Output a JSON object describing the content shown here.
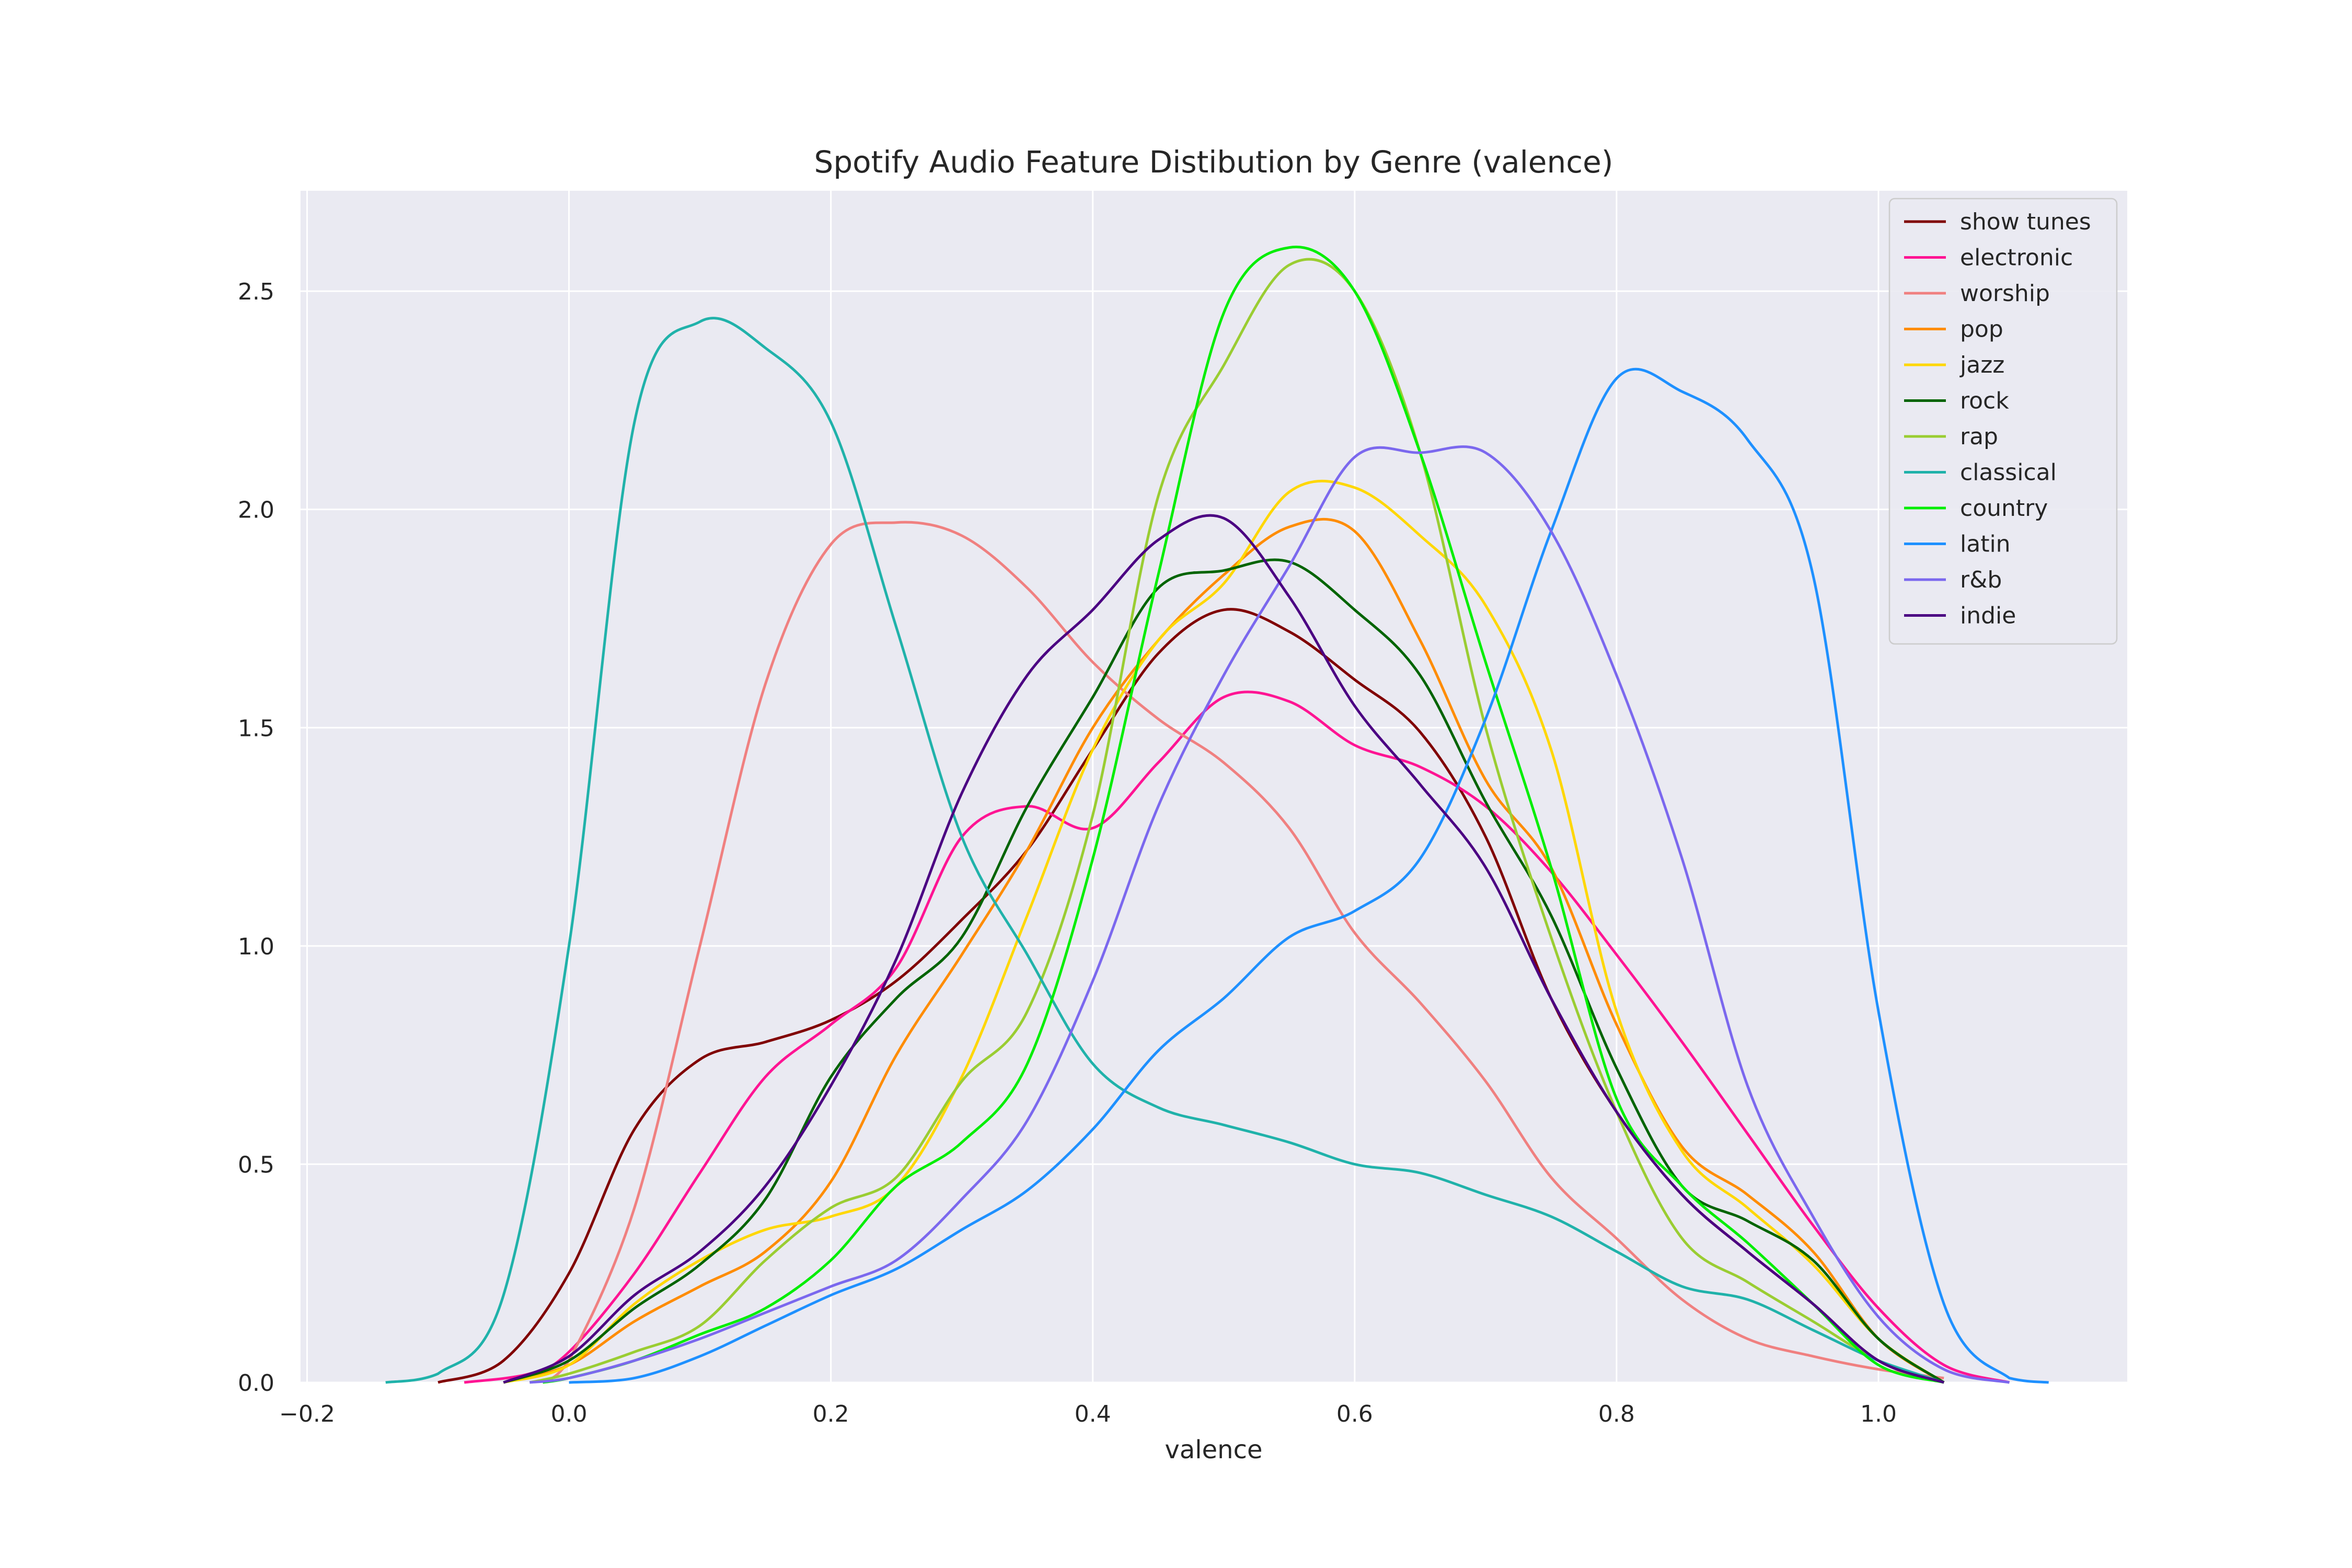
{
  "chart_data": {
    "type": "line",
    "title": "Spotify Audio Feature Distibution by Genre (valence)",
    "xlabel": "valence",
    "ylabel": "",
    "xlim": [
      -0.205,
      1.19
    ],
    "ylim": [
      0.0,
      2.73
    ],
    "xticks": [
      -0.2,
      0.0,
      0.2,
      0.4,
      0.6,
      0.8,
      1.0
    ],
    "xtick_labels": [
      "−0.2",
      "0.0",
      "0.2",
      "0.4",
      "0.6",
      "0.8",
      "1.0"
    ],
    "yticks": [
      0.0,
      0.5,
      1.0,
      1.5,
      2.0,
      2.5
    ],
    "ytick_labels": [
      "0.0",
      "0.5",
      "1.0",
      "1.5",
      "2.0",
      "2.5"
    ],
    "grid": true,
    "legend_position": "upper right",
    "style": {
      "plot_background": "#eaeaf2",
      "grid_color": "#ffffff"
    },
    "series": [
      {
        "name": "show tunes",
        "color": "#800000",
        "points": [
          [
            -0.1,
            0.0
          ],
          [
            -0.05,
            0.05
          ],
          [
            0.0,
            0.25
          ],
          [
            0.05,
            0.58
          ],
          [
            0.1,
            0.74
          ],
          [
            0.15,
            0.78
          ],
          [
            0.2,
            0.83
          ],
          [
            0.25,
            0.92
          ],
          [
            0.3,
            1.06
          ],
          [
            0.35,
            1.22
          ],
          [
            0.4,
            1.45
          ],
          [
            0.45,
            1.67
          ],
          [
            0.5,
            1.77
          ],
          [
            0.55,
            1.72
          ],
          [
            0.6,
            1.61
          ],
          [
            0.65,
            1.49
          ],
          [
            0.7,
            1.25
          ],
          [
            0.75,
            0.88
          ],
          [
            0.8,
            0.62
          ],
          [
            0.85,
            0.43
          ],
          [
            0.9,
            0.3
          ],
          [
            0.95,
            0.18
          ],
          [
            1.0,
            0.05
          ],
          [
            1.05,
            0.0
          ]
        ]
      },
      {
        "name": "electronic",
        "color": "#ff1493",
        "points": [
          [
            -0.08,
            0.0
          ],
          [
            -0.03,
            0.02
          ],
          [
            0.0,
            0.07
          ],
          [
            0.05,
            0.25
          ],
          [
            0.1,
            0.48
          ],
          [
            0.15,
            0.7
          ],
          [
            0.2,
            0.82
          ],
          [
            0.25,
            0.95
          ],
          [
            0.3,
            1.25
          ],
          [
            0.35,
            1.32
          ],
          [
            0.4,
            1.27
          ],
          [
            0.45,
            1.42
          ],
          [
            0.5,
            1.57
          ],
          [
            0.55,
            1.56
          ],
          [
            0.6,
            1.46
          ],
          [
            0.65,
            1.41
          ],
          [
            0.7,
            1.32
          ],
          [
            0.75,
            1.17
          ],
          [
            0.8,
            0.98
          ],
          [
            0.85,
            0.78
          ],
          [
            0.9,
            0.57
          ],
          [
            0.95,
            0.36
          ],
          [
            1.0,
            0.17
          ],
          [
            1.05,
            0.04
          ],
          [
            1.1,
            0.0
          ]
        ]
      },
      {
        "name": "worship",
        "color": "#f08080",
        "points": [
          [
            -0.02,
            0.0
          ],
          [
            0.0,
            0.05
          ],
          [
            0.05,
            0.4
          ],
          [
            0.1,
            1.0
          ],
          [
            0.15,
            1.6
          ],
          [
            0.2,
            1.92
          ],
          [
            0.25,
            1.97
          ],
          [
            0.3,
            1.94
          ],
          [
            0.35,
            1.82
          ],
          [
            0.4,
            1.65
          ],
          [
            0.45,
            1.52
          ],
          [
            0.5,
            1.42
          ],
          [
            0.55,
            1.27
          ],
          [
            0.6,
            1.03
          ],
          [
            0.65,
            0.87
          ],
          [
            0.7,
            0.69
          ],
          [
            0.75,
            0.47
          ],
          [
            0.8,
            0.33
          ],
          [
            0.85,
            0.19
          ],
          [
            0.9,
            0.1
          ],
          [
            0.95,
            0.06
          ],
          [
            1.0,
            0.03
          ],
          [
            1.05,
            0.01
          ]
        ]
      },
      {
        "name": "pop",
        "color": "#ff8c00",
        "points": [
          [
            -0.05,
            0.0
          ],
          [
            0.0,
            0.04
          ],
          [
            0.05,
            0.14
          ],
          [
            0.1,
            0.22
          ],
          [
            0.15,
            0.3
          ],
          [
            0.2,
            0.46
          ],
          [
            0.25,
            0.75
          ],
          [
            0.3,
            0.98
          ],
          [
            0.35,
            1.22
          ],
          [
            0.4,
            1.5
          ],
          [
            0.45,
            1.7
          ],
          [
            0.5,
            1.85
          ],
          [
            0.55,
            1.96
          ],
          [
            0.6,
            1.95
          ],
          [
            0.65,
            1.7
          ],
          [
            0.7,
            1.38
          ],
          [
            0.75,
            1.18
          ],
          [
            0.8,
            0.82
          ],
          [
            0.85,
            0.54
          ],
          [
            0.9,
            0.43
          ],
          [
            0.95,
            0.3
          ],
          [
            1.0,
            0.1
          ],
          [
            1.05,
            0.0
          ]
        ]
      },
      {
        "name": "jazz",
        "color": "#ffd700",
        "points": [
          [
            -0.05,
            0.0
          ],
          [
            0.0,
            0.04
          ],
          [
            0.05,
            0.18
          ],
          [
            0.1,
            0.28
          ],
          [
            0.15,
            0.35
          ],
          [
            0.2,
            0.38
          ],
          [
            0.25,
            0.45
          ],
          [
            0.3,
            0.7
          ],
          [
            0.35,
            1.07
          ],
          [
            0.4,
            1.45
          ],
          [
            0.45,
            1.7
          ],
          [
            0.5,
            1.83
          ],
          [
            0.55,
            2.04
          ],
          [
            0.6,
            2.05
          ],
          [
            0.65,
            1.94
          ],
          [
            0.7,
            1.78
          ],
          [
            0.75,
            1.45
          ],
          [
            0.8,
            0.85
          ],
          [
            0.85,
            0.53
          ],
          [
            0.9,
            0.4
          ],
          [
            0.95,
            0.27
          ],
          [
            1.0,
            0.1
          ],
          [
            1.05,
            0.0
          ]
        ]
      },
      {
        "name": "rock",
        "color": "#006400",
        "points": [
          [
            -0.05,
            0.0
          ],
          [
            0.0,
            0.05
          ],
          [
            0.05,
            0.17
          ],
          [
            0.1,
            0.27
          ],
          [
            0.15,
            0.42
          ],
          [
            0.2,
            0.7
          ],
          [
            0.25,
            0.88
          ],
          [
            0.3,
            1.02
          ],
          [
            0.35,
            1.32
          ],
          [
            0.4,
            1.57
          ],
          [
            0.45,
            1.82
          ],
          [
            0.5,
            1.86
          ],
          [
            0.55,
            1.88
          ],
          [
            0.6,
            1.77
          ],
          [
            0.65,
            1.62
          ],
          [
            0.7,
            1.33
          ],
          [
            0.75,
            1.07
          ],
          [
            0.8,
            0.72
          ],
          [
            0.85,
            0.45
          ],
          [
            0.9,
            0.37
          ],
          [
            0.95,
            0.28
          ],
          [
            1.0,
            0.1
          ],
          [
            1.05,
            0.0
          ]
        ]
      },
      {
        "name": "rap",
        "color": "#9acd32",
        "points": [
          [
            -0.03,
            0.0
          ],
          [
            0.0,
            0.02
          ],
          [
            0.05,
            0.07
          ],
          [
            0.1,
            0.13
          ],
          [
            0.15,
            0.28
          ],
          [
            0.2,
            0.4
          ],
          [
            0.25,
            0.47
          ],
          [
            0.3,
            0.69
          ],
          [
            0.35,
            0.85
          ],
          [
            0.4,
            1.3
          ],
          [
            0.45,
            2.03
          ],
          [
            0.5,
            2.33
          ],
          [
            0.55,
            2.56
          ],
          [
            0.6,
            2.5
          ],
          [
            0.65,
            2.13
          ],
          [
            0.7,
            1.5
          ],
          [
            0.75,
            1.02
          ],
          [
            0.8,
            0.62
          ],
          [
            0.85,
            0.33
          ],
          [
            0.9,
            0.23
          ],
          [
            0.95,
            0.14
          ],
          [
            1.0,
            0.05
          ],
          [
            1.05,
            0.0
          ]
        ]
      },
      {
        "name": "classical",
        "color": "#20b2aa",
        "points": [
          [
            -0.14,
            0.0
          ],
          [
            -0.1,
            0.02
          ],
          [
            -0.05,
            0.2
          ],
          [
            0.0,
            1.0
          ],
          [
            0.05,
            2.2
          ],
          [
            0.1,
            2.43
          ],
          [
            0.15,
            2.37
          ],
          [
            0.2,
            2.2
          ],
          [
            0.25,
            1.73
          ],
          [
            0.3,
            1.25
          ],
          [
            0.35,
            0.98
          ],
          [
            0.4,
            0.73
          ],
          [
            0.45,
            0.63
          ],
          [
            0.5,
            0.59
          ],
          [
            0.55,
            0.55
          ],
          [
            0.6,
            0.5
          ],
          [
            0.65,
            0.48
          ],
          [
            0.7,
            0.43
          ],
          [
            0.75,
            0.38
          ],
          [
            0.8,
            0.3
          ],
          [
            0.85,
            0.22
          ],
          [
            0.9,
            0.19
          ],
          [
            0.95,
            0.12
          ],
          [
            1.0,
            0.05
          ],
          [
            1.05,
            0.0
          ]
        ]
      },
      {
        "name": "country",
        "color": "#00ee00",
        "points": [
          [
            -0.02,
            0.0
          ],
          [
            0.0,
            0.01
          ],
          [
            0.05,
            0.05
          ],
          [
            0.1,
            0.11
          ],
          [
            0.15,
            0.17
          ],
          [
            0.2,
            0.28
          ],
          [
            0.25,
            0.45
          ],
          [
            0.3,
            0.55
          ],
          [
            0.35,
            0.73
          ],
          [
            0.4,
            1.2
          ],
          [
            0.45,
            1.85
          ],
          [
            0.5,
            2.45
          ],
          [
            0.55,
            2.6
          ],
          [
            0.6,
            2.5
          ],
          [
            0.65,
            2.13
          ],
          [
            0.7,
            1.65
          ],
          [
            0.75,
            1.18
          ],
          [
            0.8,
            0.65
          ],
          [
            0.85,
            0.45
          ],
          [
            0.9,
            0.32
          ],
          [
            0.95,
            0.18
          ],
          [
            1.0,
            0.04
          ],
          [
            1.05,
            0.0
          ]
        ]
      },
      {
        "name": "latin",
        "color": "#1e90ff",
        "points": [
          [
            0.0,
            0.0
          ],
          [
            0.05,
            0.01
          ],
          [
            0.1,
            0.06
          ],
          [
            0.15,
            0.13
          ],
          [
            0.2,
            0.2
          ],
          [
            0.25,
            0.26
          ],
          [
            0.3,
            0.35
          ],
          [
            0.35,
            0.44
          ],
          [
            0.4,
            0.58
          ],
          [
            0.45,
            0.76
          ],
          [
            0.5,
            0.88
          ],
          [
            0.55,
            1.02
          ],
          [
            0.6,
            1.08
          ],
          [
            0.65,
            1.2
          ],
          [
            0.7,
            1.52
          ],
          [
            0.75,
            1.95
          ],
          [
            0.8,
            2.3
          ],
          [
            0.85,
            2.27
          ],
          [
            0.9,
            2.16
          ],
          [
            0.95,
            1.85
          ],
          [
            1.0,
            0.85
          ],
          [
            1.05,
            0.18
          ],
          [
            1.1,
            0.01
          ],
          [
            1.13,
            0.0
          ]
        ]
      },
      {
        "name": "r&b",
        "color": "#7b68ee",
        "points": [
          [
            -0.03,
            0.0
          ],
          [
            0.0,
            0.01
          ],
          [
            0.05,
            0.05
          ],
          [
            0.1,
            0.1
          ],
          [
            0.15,
            0.16
          ],
          [
            0.2,
            0.22
          ],
          [
            0.25,
            0.28
          ],
          [
            0.3,
            0.42
          ],
          [
            0.35,
            0.6
          ],
          [
            0.4,
            0.92
          ],
          [
            0.45,
            1.32
          ],
          [
            0.5,
            1.62
          ],
          [
            0.55,
            1.87
          ],
          [
            0.6,
            2.12
          ],
          [
            0.65,
            2.13
          ],
          [
            0.7,
            2.13
          ],
          [
            0.75,
            1.95
          ],
          [
            0.8,
            1.62
          ],
          [
            0.85,
            1.2
          ],
          [
            0.9,
            0.68
          ],
          [
            0.95,
            0.38
          ],
          [
            1.0,
            0.15
          ],
          [
            1.05,
            0.03
          ],
          [
            1.1,
            0.0
          ]
        ]
      },
      {
        "name": "indie",
        "color": "#4b0082",
        "points": [
          [
            -0.05,
            0.0
          ],
          [
            0.0,
            0.06
          ],
          [
            0.05,
            0.2
          ],
          [
            0.1,
            0.3
          ],
          [
            0.15,
            0.45
          ],
          [
            0.2,
            0.68
          ],
          [
            0.25,
            0.97
          ],
          [
            0.3,
            1.35
          ],
          [
            0.35,
            1.62
          ],
          [
            0.4,
            1.77
          ],
          [
            0.45,
            1.93
          ],
          [
            0.5,
            1.98
          ],
          [
            0.55,
            1.8
          ],
          [
            0.6,
            1.55
          ],
          [
            0.65,
            1.37
          ],
          [
            0.7,
            1.18
          ],
          [
            0.75,
            0.88
          ],
          [
            0.8,
            0.62
          ],
          [
            0.85,
            0.43
          ],
          [
            0.9,
            0.3
          ],
          [
            0.95,
            0.18
          ],
          [
            1.0,
            0.05
          ],
          [
            1.05,
            0.0
          ]
        ]
      }
    ]
  }
}
